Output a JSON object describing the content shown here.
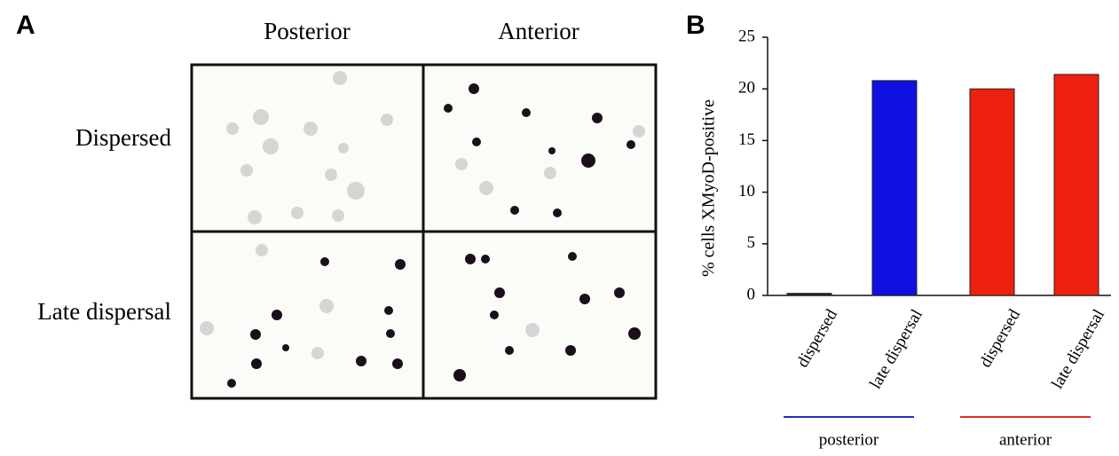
{
  "panel_a": {
    "label": "A",
    "columns": [
      "Posterior",
      "Anterior"
    ],
    "rows": [
      "Dispersed",
      "Late dispersal"
    ]
  },
  "chart_data": {
    "type": "bar",
    "panel_label": "B",
    "y_label": "% cells XMyoD-positive",
    "categories": [
      "dispersed",
      "late dispersal",
      "dispersed",
      "late dispersal"
    ],
    "values": [
      0.2,
      20.8,
      20,
      21.4
    ],
    "colors": [
      "#222222",
      "#1010e0",
      "#ee2010",
      "#ee2010"
    ],
    "groups": [
      {
        "name": "posterior",
        "color": "#2030c0"
      },
      {
        "name": "anterior",
        "color": "#e03020"
      }
    ],
    "ylim": [
      0,
      25
    ],
    "yticks": [
      0,
      5,
      10,
      15,
      20,
      25
    ],
    "grid": false
  }
}
